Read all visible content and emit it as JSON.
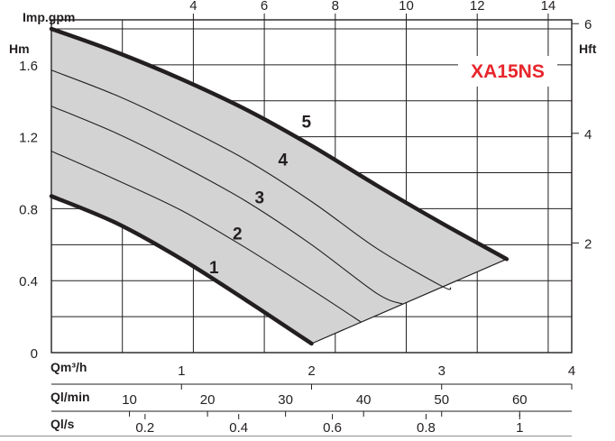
{
  "chart_data": {
    "type": "line",
    "title": "XA15NS",
    "ylabel": "Hm",
    "ylabel_right": "Hft",
    "xlabel_top": "Imp.gpm",
    "xlabel_bottom_rows": [
      "Qm³/h",
      "Ql/min",
      "Ql/s"
    ],
    "xlim": [
      0,
      4
    ],
    "ylim": [
      0,
      1.85
    ],
    "grid": true,
    "y_ticks": [
      {
        "value": 0,
        "label": "0"
      },
      {
        "value": 0.4,
        "label": "0.4"
      },
      {
        "value": 0.8,
        "label": "0.8"
      },
      {
        "value": 1.2,
        "label": "1.2"
      },
      {
        "value": 1.6,
        "label": "1.6"
      }
    ],
    "hft_ticks": [
      {
        "value": 2,
        "label": "2"
      },
      {
        "value": 4,
        "label": "4"
      },
      {
        "value": 6,
        "label": "6"
      }
    ],
    "gpm_ticks": [
      {
        "value": 4,
        "label": "4"
      },
      {
        "value": 6,
        "label": "6"
      },
      {
        "value": 8,
        "label": "8"
      },
      {
        "value": 10,
        "label": "10"
      },
      {
        "value": 12,
        "label": "12"
      },
      {
        "value": 14,
        "label": "14"
      }
    ],
    "m3h_ticks": [
      {
        "value": 1,
        "label": "1"
      },
      {
        "value": 2,
        "label": "2"
      },
      {
        "value": 3,
        "label": "3"
      },
      {
        "value": 4,
        "label": "4"
      }
    ],
    "lmin_ticks": [
      {
        "value": 10,
        "label": "10"
      },
      {
        "value": 20,
        "label": "20"
      },
      {
        "value": 30,
        "label": "30"
      },
      {
        "value": 40,
        "label": "40"
      },
      {
        "value": 50,
        "label": "50"
      },
      {
        "value": 60,
        "label": "60"
      }
    ],
    "ls_ticks": [
      {
        "value": 0.2,
        "label": "0.2"
      },
      {
        "value": 0.4,
        "label": "0.4"
      },
      {
        "value": 0.6,
        "label": "0.6"
      },
      {
        "value": 0.8,
        "label": "0.8"
      },
      {
        "value": 1,
        "label": "1"
      }
    ],
    "series": [
      {
        "label": "1",
        "x": [
          0,
          0.5,
          1.0,
          1.5,
          2.0
        ],
        "y": [
          0.87,
          0.72,
          0.52,
          0.29,
          0.05
        ],
        "label_at": [
          1.25,
          0.44
        ]
      },
      {
        "label": "2",
        "x": [
          0,
          0.5,
          1.0,
          1.5,
          2.0,
          2.38
        ],
        "y": [
          1.12,
          0.96,
          0.79,
          0.58,
          0.35,
          0.17
        ],
        "label_at": [
          1.43,
          0.63
        ]
      },
      {
        "label": "3",
        "x": [
          0,
          0.5,
          1.0,
          1.5,
          2.0,
          2.5,
          2.7
        ],
        "y": [
          1.37,
          1.22,
          1.04,
          0.84,
          0.6,
          0.33,
          0.27
        ],
        "label_at": [
          1.6,
          0.83
        ]
      },
      {
        "label": "4",
        "x": [
          0,
          0.5,
          1.0,
          1.5,
          2.0,
          2.5,
          3.0,
          3.07
        ],
        "y": [
          1.57,
          1.43,
          1.26,
          1.07,
          0.84,
          0.58,
          0.37,
          0.36
        ],
        "label_at": [
          1.78,
          1.04
        ]
      },
      {
        "label": "5",
        "x": [
          0,
          0.5,
          1.0,
          1.5,
          2.0,
          2.5,
          3.0,
          3.5
        ],
        "y": [
          1.8,
          1.67,
          1.52,
          1.35,
          1.15,
          0.93,
          0.72,
          0.52
        ],
        "label_at": [
          1.96,
          1.25
        ]
      }
    ],
    "operating_area": "between curve 1 and curve 5, closed by the line joining their ends",
    "area_color": "#d3d3d3",
    "curve_color": "#231f20",
    "title_color": "#e8252c"
  }
}
